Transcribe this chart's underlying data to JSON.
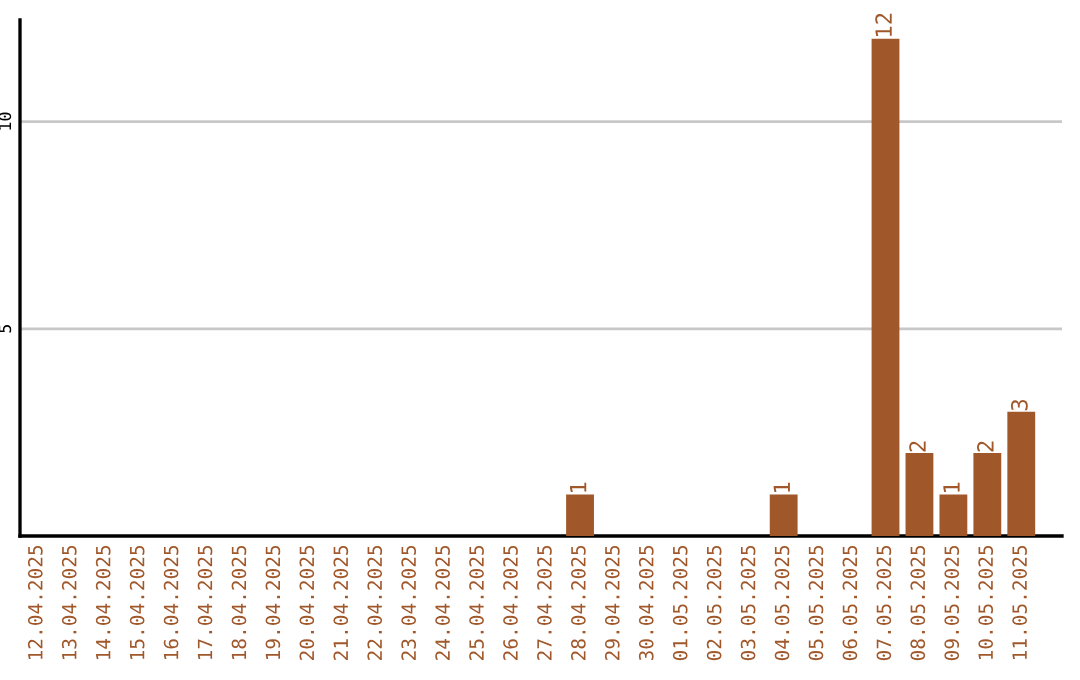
{
  "chart_data": {
    "type": "bar",
    "categories": [
      "12.04.2025",
      "13.04.2025",
      "14.04.2025",
      "15.04.2025",
      "16.04.2025",
      "17.04.2025",
      "18.04.2025",
      "19.04.2025",
      "20.04.2025",
      "21.04.2025",
      "22.04.2025",
      "23.04.2025",
      "24.04.2025",
      "25.04.2025",
      "26.04.2025",
      "27.04.2025",
      "28.04.2025",
      "29.04.2025",
      "30.04.2025",
      "01.05.2025",
      "02.05.2025",
      "03.05.2025",
      "04.05.2025",
      "05.05.2025",
      "06.05.2025",
      "07.05.2025",
      "08.05.2025",
      "09.05.2025",
      "10.05.2025",
      "11.05.2025"
    ],
    "values": [
      0,
      0,
      0,
      0,
      0,
      0,
      0,
      0,
      0,
      0,
      0,
      0,
      0,
      0,
      0,
      0,
      1,
      0,
      0,
      0,
      0,
      0,
      1,
      0,
      0,
      12,
      2,
      1,
      2,
      3
    ],
    "value_labels": [
      null,
      null,
      null,
      null,
      null,
      null,
      null,
      null,
      null,
      null,
      null,
      null,
      null,
      null,
      null,
      null,
      "1",
      null,
      null,
      null,
      null,
      null,
      "1",
      null,
      null,
      "12",
      "2",
      "1",
      "2",
      "3"
    ],
    "color": "#a0572a",
    "ylim": [
      0,
      12.45
    ],
    "yticks": [
      5,
      10
    ],
    "grid": "y"
  }
}
